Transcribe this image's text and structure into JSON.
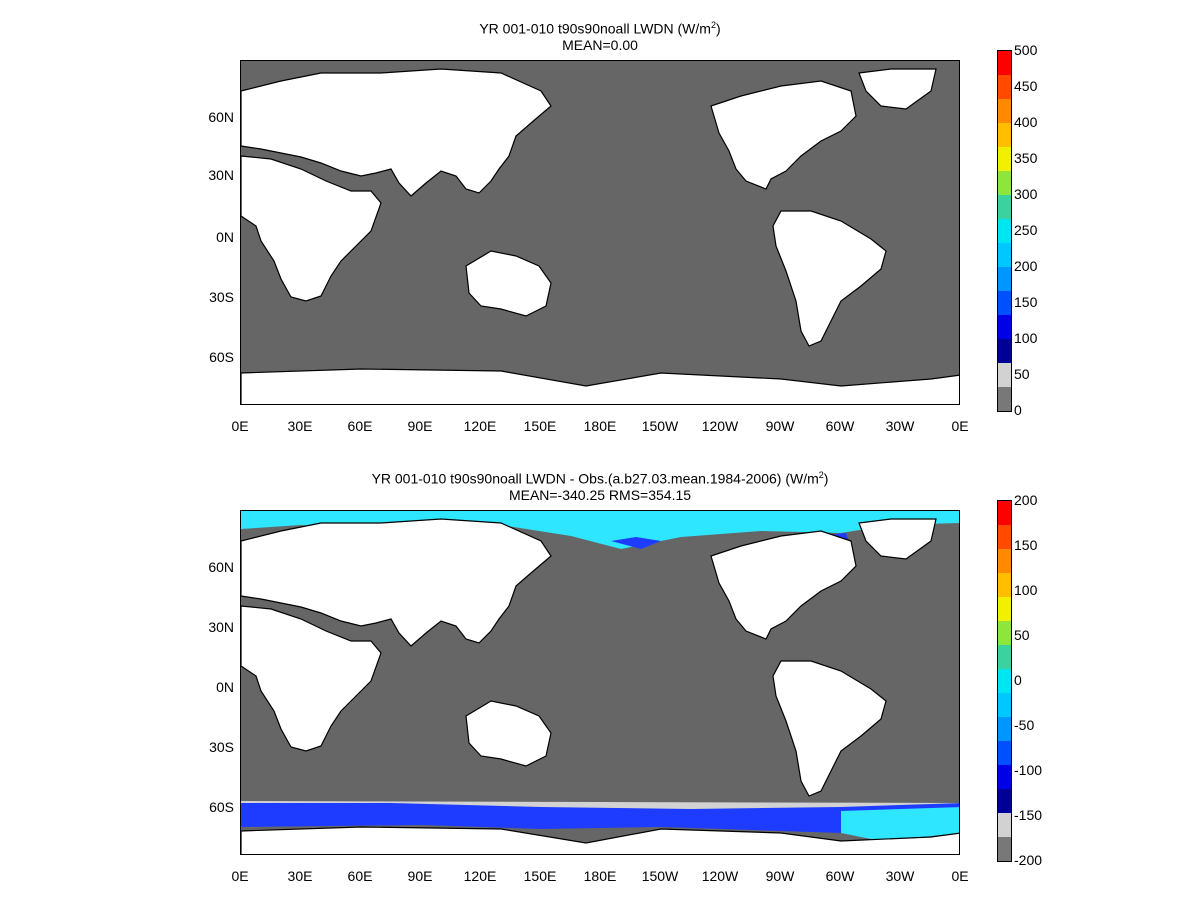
{
  "panels": [
    {
      "title_text": "YR 001-010 t90s90noall LWDN (W/m",
      "title_sup": "2",
      "title_close": ")",
      "subtitle": "MEAN=0.00",
      "colorbar": {
        "labels": [
          "500",
          "450",
          "400",
          "350",
          "300",
          "250",
          "200",
          "150",
          "100",
          "50",
          "0"
        ],
        "colors": [
          "#ff0000",
          "#ff4a00",
          "#ff8a00",
          "#ffbe00",
          "#f0f000",
          "#8ce63c",
          "#3cd2a0",
          "#00e6f0",
          "#00c8ff",
          "#0096ff",
          "#0050ff",
          "#0000e6",
          "#000096",
          "#d2d2d2",
          "#787878"
        ]
      }
    },
    {
      "title_text": "YR 001-010 t90s90noall LWDN - Obs.(a.b27.03.mean.1984-2006) (W/m",
      "title_sup": "2",
      "title_close": ")",
      "subtitle": "MEAN=-340.25 RMS=354.15",
      "colorbar": {
        "labels": [
          "200",
          "150",
          "100",
          "50",
          "0",
          "-50",
          "-100",
          "-150",
          "-200"
        ],
        "colors": [
          "#ff0000",
          "#ff4a00",
          "#ff8a00",
          "#ffbe00",
          "#f0f000",
          "#8ce63c",
          "#3cd2a0",
          "#00e6f0",
          "#00c8ff",
          "#0096ff",
          "#0050ff",
          "#0000e6",
          "#000096",
          "#d2d2d2",
          "#787878"
        ]
      }
    }
  ],
  "lat_labels": [
    "60N",
    "30N",
    "0N",
    "30S",
    "60S"
  ],
  "lon_labels": [
    "0E",
    "30E",
    "60E",
    "90E",
    "120E",
    "150E",
    "180E",
    "150W",
    "120W",
    "90W",
    "60W",
    "30W",
    "0E"
  ],
  "colors": {
    "ocean": "#666666",
    "land": "#ffffff",
    "ice_cyan": "#2ee6ff",
    "ice_blue": "#1e3cff"
  }
}
